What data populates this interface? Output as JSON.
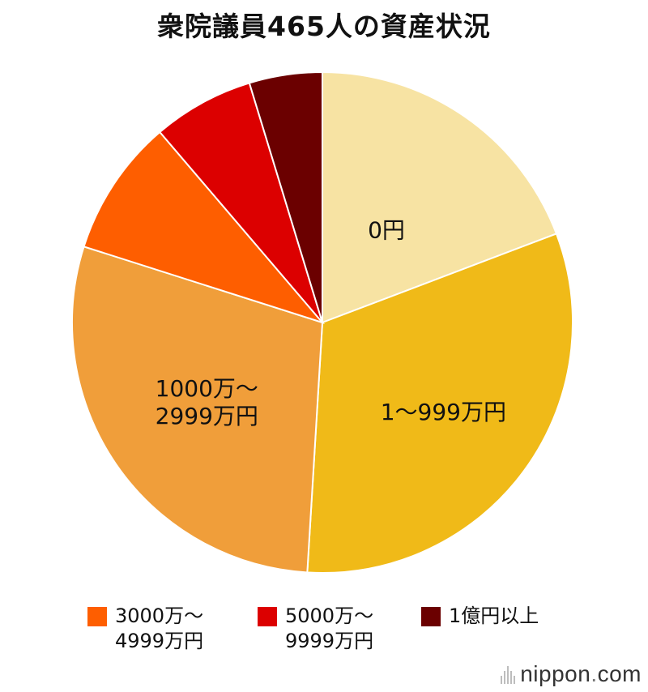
{
  "title": "衆院議員465人の資産状況",
  "chart_data": {
    "type": "pie",
    "title": "衆院議員465人の資産状況",
    "start_angle_deg": 0,
    "direction": "clockwise",
    "slices": [
      {
        "label": "0円",
        "value": 20.0,
        "color": "#f7e3a3",
        "show_label": true
      },
      {
        "label": "1〜999万円",
        "value": 33.0,
        "color": "#f0ba18",
        "show_label": true
      },
      {
        "label": "1000万〜\n2999万円",
        "value": 30.1,
        "color": "#f09e3a",
        "show_label": true
      },
      {
        "label": "3000万〜\n4999万円",
        "value": 9.2,
        "color": "#fe5e00",
        "show_label": false
      },
      {
        "label": "5000万〜\n9999万円",
        "value": 6.8,
        "color": "#dc0000",
        "show_label": false
      },
      {
        "label": "1億円以上",
        "value": 4.9,
        "color": "#6b0000",
        "show_label": false
      }
    ]
  },
  "legend": {
    "items": [
      {
        "label": "3000万〜\n4999万円",
        "color": "#fe5e00"
      },
      {
        "label": "5000万〜\n9999万円",
        "color": "#dc0000"
      },
      {
        "label": "1億円以上",
        "color": "#6b0000"
      }
    ]
  },
  "logo": {
    "main": "nippon",
    "dot": ".",
    "suffix": "com"
  }
}
